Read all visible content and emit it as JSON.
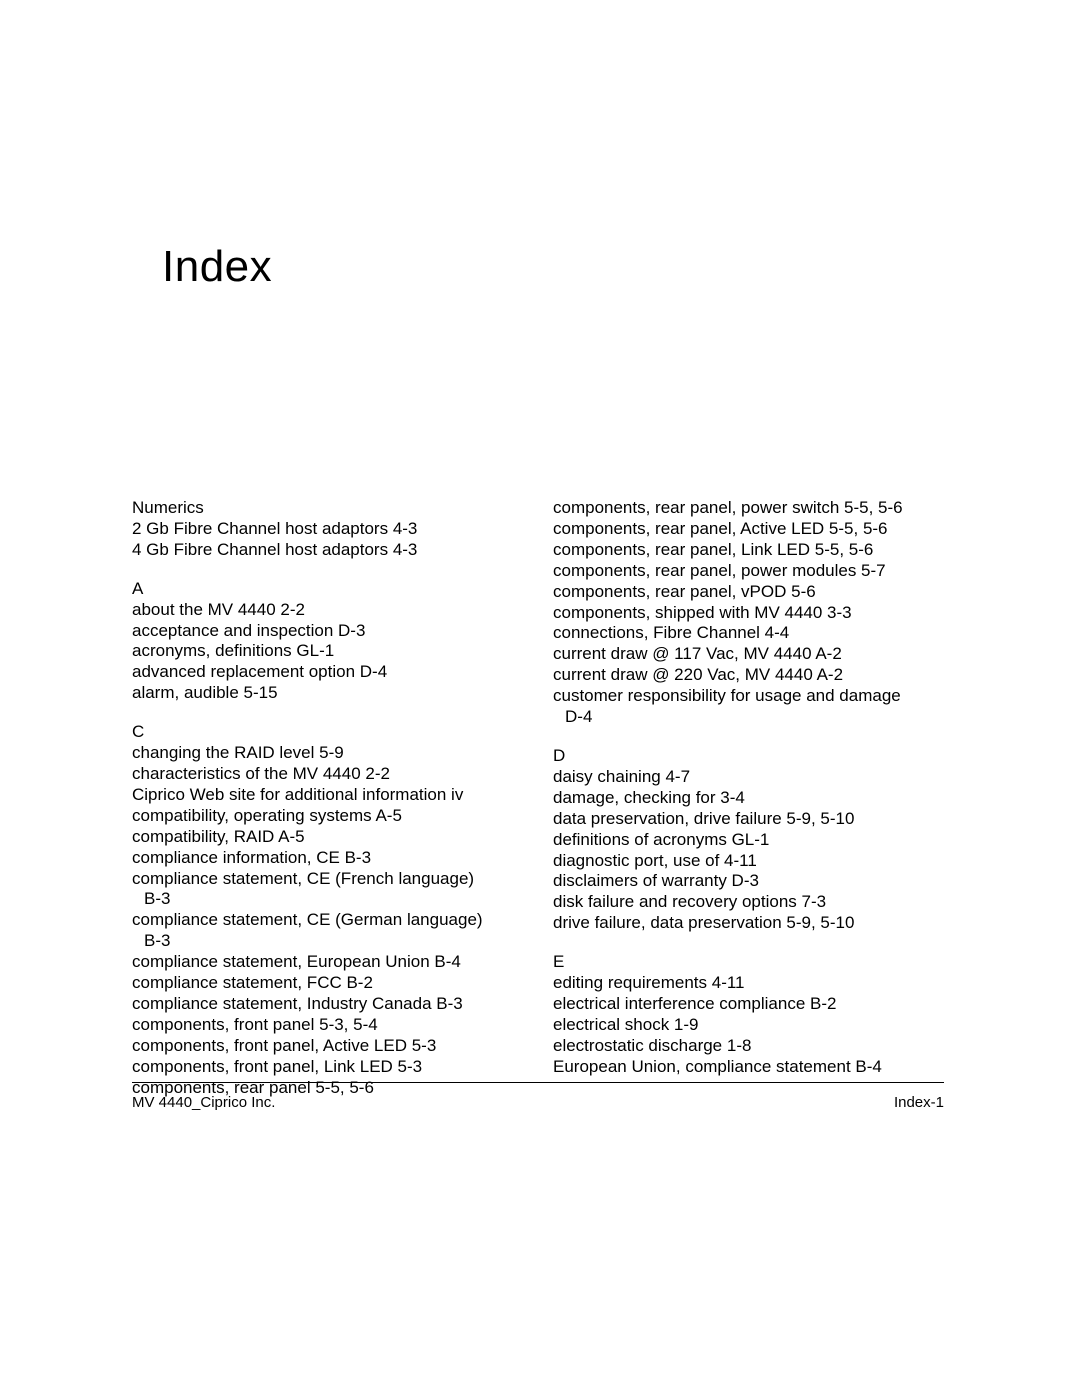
{
  "title": "Index",
  "footer": {
    "left": "MV 4440_Ciprico Inc.",
    "right": "Index-1"
  },
  "left_column": [
    {
      "heading": "Numerics",
      "entries": [
        [
          "2 Gb Fibre Channel host adaptors 4-3"
        ],
        [
          "4 Gb Fibre Channel host adaptors 4-3"
        ]
      ]
    },
    {
      "heading": "A",
      "entries": [
        [
          "about the MV 4440 2-2"
        ],
        [
          "acceptance and inspection D-3"
        ],
        [
          "acronyms, definitions GL-1"
        ],
        [
          "advanced replacement option D-4"
        ],
        [
          "alarm, audible 5-15"
        ]
      ]
    },
    {
      "heading": "C",
      "entries": [
        [
          "changing the RAID level 5-9"
        ],
        [
          "characteristics of the MV 4440 2-2"
        ],
        [
          "Ciprico Web site for additional information iv"
        ],
        [
          "compatibility, operating systems A-5"
        ],
        [
          "compatibility, RAID A-5"
        ],
        [
          "compliance information, CE B-3"
        ],
        [
          "compliance statement, CE (French language)",
          "B-3"
        ],
        [
          "compliance statement, CE (German language)",
          "B-3"
        ],
        [
          "compliance statement, European Union B-4"
        ],
        [
          "compliance statement, FCC B-2"
        ],
        [
          "compliance statement, Industry Canada B-3"
        ],
        [
          "components, front panel  5-3, 5-4"
        ],
        [
          "components, front panel, Active LED 5-3"
        ],
        [
          "components, front panel, Link LED 5-3"
        ],
        [
          "components, rear panel 5-5, 5-6"
        ]
      ]
    }
  ],
  "right_column": [
    {
      "heading": null,
      "entries": [
        [
          "components, rear panel, power switch 5-5, 5-6"
        ],
        [
          "components, rear panel, Active LED 5-5, 5-6"
        ],
        [
          "components, rear panel, Link LED 5-5, 5-6"
        ],
        [
          "components, rear panel, power modules 5-7"
        ],
        [
          "components, rear panel, vPOD 5-6"
        ],
        [
          "components, shipped with MV 4440 3-3"
        ],
        [
          "connections, Fibre Channel 4-4"
        ],
        [
          "current draw @ 117 Vac, MV 4440 A-2"
        ],
        [
          "current draw @ 220 Vac, MV 4440 A-2"
        ],
        [
          "customer responsibility for usage and damage",
          "D-4"
        ]
      ]
    },
    {
      "heading": "D",
      "entries": [
        [
          "daisy chaining 4-7"
        ],
        [
          "damage, checking for 3-4"
        ],
        [
          "data preservation, drive failure 5-9, 5-10"
        ],
        [
          "definitions of acronyms GL-1"
        ],
        [
          "diagnostic port, use of 4-11"
        ],
        [
          "disclaimers of warranty D-3"
        ],
        [
          "disk failure and recovery options 7-3"
        ],
        [
          "drive failure, data preservation 5-9, 5-10"
        ]
      ]
    },
    {
      "heading": "E",
      "entries": [
        [
          "editing requirements 4-11"
        ],
        [
          "electrical interference compliance B-2"
        ],
        [
          "electrical shock 1-9"
        ],
        [
          "electrostatic discharge 1-8"
        ],
        [
          "European Union, compliance statement B-4"
        ]
      ]
    }
  ]
}
